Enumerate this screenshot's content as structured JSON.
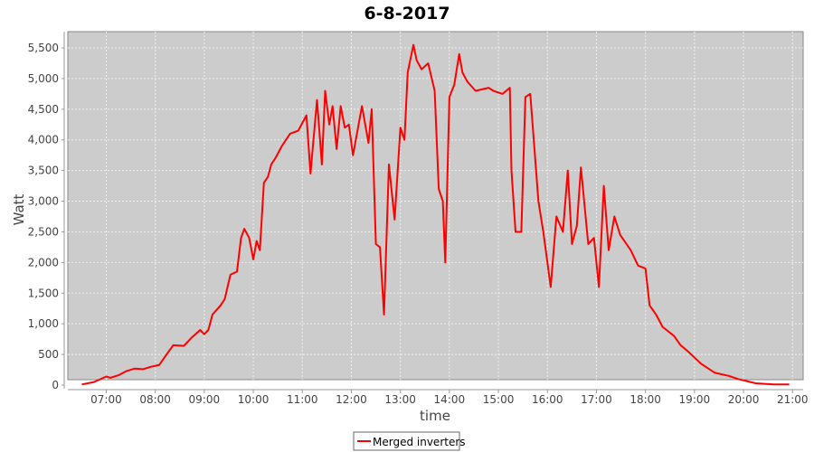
{
  "chart_data": {
    "type": "line",
    "title": "6-8-2017",
    "xlabel": "time",
    "ylabel": "Watt",
    "xlim": [
      "06:13",
      "21:13"
    ],
    "ylim": [
      0,
      5750
    ],
    "x_ticks": [
      "07:00",
      "08:00",
      "09:00",
      "10:00",
      "11:00",
      "12:00",
      "13:00",
      "14:00",
      "15:00",
      "16:00",
      "17:00",
      "18:00",
      "19:00",
      "20:00",
      "21:00"
    ],
    "y_ticks": [
      0,
      500,
      1000,
      1500,
      2000,
      2500,
      3000,
      3500,
      4000,
      4500,
      5000,
      5500
    ],
    "y_tick_labels": [
      "0",
      "500",
      "1,000",
      "1,500",
      "2,000",
      "2,500",
      "3,000",
      "3,500",
      "4,000",
      "4,500",
      "5,000",
      "5,500"
    ],
    "grid": true,
    "legend_position": "bottom",
    "plot_background": "#cccccc",
    "series": [
      {
        "name": "Merged inverters",
        "color": "#ff0000",
        "x": [
          "06:30",
          "06:45",
          "07:00",
          "07:05",
          "07:15",
          "07:25",
          "07:35",
          "07:45",
          "07:55",
          "08:05",
          "08:15",
          "08:22",
          "08:35",
          "08:45",
          "08:55",
          "09:00",
          "09:05",
          "09:10",
          "09:20",
          "09:25",
          "09:32",
          "09:40",
          "09:45",
          "09:49",
          "09:55",
          "10:00",
          "10:04",
          "10:08",
          "10:13",
          "10:18",
          "10:22",
          "10:27",
          "10:35",
          "10:45",
          "10:55",
          "11:05",
          "11:10",
          "11:18",
          "11:24",
          "11:28",
          "11:33",
          "11:37",
          "11:42",
          "11:47",
          "11:52",
          "11:57",
          "12:02",
          "12:13",
          "12:21",
          "12:25",
          "12:30",
          "12:35",
          "12:40",
          "12:46",
          "12:53",
          "13:00",
          "13:05",
          "13:09",
          "13:16",
          "13:20",
          "13:26",
          "13:34",
          "13:42",
          "13:47",
          "13:52",
          "13:55",
          "14:00",
          "14:06",
          "14:12",
          "14:16",
          "14:22",
          "14:32",
          "14:48",
          "14:54",
          "15:05",
          "15:14",
          "15:16",
          "15:21",
          "15:28",
          "15:33",
          "15:39",
          "15:49",
          "15:55",
          "16:04",
          "16:11",
          "16:19",
          "16:25",
          "16:30",
          "16:36",
          "16:41",
          "16:50",
          "16:57",
          "17:03",
          "17:09",
          "17:15",
          "17:22",
          "17:29",
          "17:42",
          "17:51",
          "18:00",
          "18:05",
          "18:13",
          "18:21",
          "18:35",
          "18:43",
          "18:52",
          "19:08",
          "19:25",
          "19:42",
          "19:53",
          "20:15",
          "20:37",
          "20:56"
        ],
        "y": [
          10,
          50,
          140,
          120,
          160,
          230,
          270,
          260,
          300,
          330,
          520,
          650,
          640,
          780,
          900,
          830,
          900,
          1150,
          1300,
          1400,
          1800,
          1850,
          2400,
          2550,
          2400,
          2050,
          2350,
          2200,
          3300,
          3400,
          3600,
          3700,
          3900,
          4100,
          4150,
          4400,
          3450,
          4650,
          3600,
          4800,
          4250,
          4550,
          3850,
          4550,
          4200,
          4250,
          3750,
          4550,
          3950,
          4500,
          2300,
          2250,
          1150,
          3600,
          2700,
          4200,
          4000,
          5100,
          5550,
          5300,
          5150,
          5250,
          4800,
          3200,
          3000,
          2000,
          4700,
          4900,
          5400,
          5100,
          4950,
          4800,
          4850,
          4800,
          4750,
          4850,
          3500,
          2500,
          2500,
          4700,
          4750,
          3000,
          2500,
          1600,
          2750,
          2500,
          3500,
          2300,
          2600,
          3550,
          2300,
          2400,
          1600,
          3250,
          2200,
          2750,
          2450,
          2200,
          1950,
          1900,
          1300,
          1150,
          950,
          800,
          650,
          550,
          350,
          200,
          150,
          100,
          30,
          10,
          10
        ]
      }
    ]
  }
}
